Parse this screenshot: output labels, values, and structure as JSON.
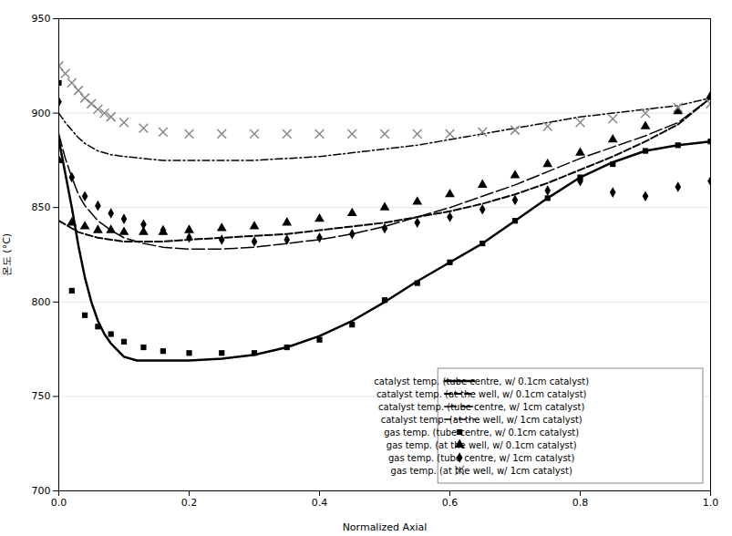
{
  "chart_data": {
    "type": "line",
    "xlabel": "Normalized Axial",
    "ylabel": "온도 (°C)",
    "xlim": [
      0,
      1.0
    ],
    "ylim": [
      700,
      950
    ],
    "xticks": [
      {
        "value": 0.0,
        "label": "0.0"
      },
      0.2,
      0.4,
      0.6,
      0.8,
      {
        "value": 1.0,
        "label": "1.0"
      }
    ],
    "yticks": [
      700,
      750,
      800,
      850,
      900,
      950
    ],
    "grid": "y",
    "legend": "lower right",
    "series": [
      {
        "name": "catalyst temp. (tube centre, w/ 0.1cm catalyst)",
        "type": "line",
        "line_style": "solid",
        "color": "#000000",
        "x": [
          0.0,
          0.01,
          0.02,
          0.03,
          0.04,
          0.05,
          0.06,
          0.07,
          0.08,
          0.1,
          0.12,
          0.14,
          0.16,
          0.18,
          0.2,
          0.25,
          0.3,
          0.35,
          0.4,
          0.45,
          0.5,
          0.55,
          0.6,
          0.65,
          0.7,
          0.75,
          0.8,
          0.85,
          0.9,
          0.95,
          1.0
        ],
        "values": [
          886,
          868,
          850,
          830,
          813,
          800,
          790,
          783,
          778,
          771,
          769,
          769,
          769,
          769,
          769,
          770,
          772,
          776,
          782,
          790,
          800,
          811,
          821,
          831,
          843,
          855,
          866,
          874,
          880,
          883,
          885
        ]
      },
      {
        "name": "catalyst temp. (at the well, w/ 0.1cm catalyst)",
        "type": "line",
        "line_style": "dashed",
        "color": "#000000",
        "x": [
          0.0,
          0.01,
          0.02,
          0.03,
          0.04,
          0.06,
          0.08,
          0.1,
          0.13,
          0.16,
          0.2,
          0.25,
          0.3,
          0.35,
          0.4,
          0.45,
          0.5,
          0.55,
          0.6,
          0.65,
          0.7,
          0.75,
          0.8,
          0.85,
          0.9,
          0.95,
          1.0
        ],
        "values": [
          843,
          841,
          839,
          837,
          836,
          834,
          833,
          832,
          832,
          832,
          833,
          834,
          835,
          836,
          838,
          840,
          842,
          845,
          848,
          852,
          857,
          863,
          870,
          877,
          885,
          894,
          908
        ]
      },
      {
        "name": "catalyst temp. (tube centre, w/ 1cm catalyst)",
        "type": "line",
        "line_style": "longdash",
        "color": "#000000",
        "x": [
          0.0,
          0.01,
          0.02,
          0.03,
          0.04,
          0.06,
          0.08,
          0.1,
          0.13,
          0.16,
          0.2,
          0.25,
          0.3,
          0.35,
          0.4,
          0.45,
          0.5,
          0.55,
          0.6,
          0.65,
          0.7,
          0.75,
          0.8,
          0.85,
          0.9,
          0.95,
          1.0
        ],
        "values": [
          889,
          876,
          866,
          857,
          851,
          843,
          838,
          834,
          831,
          829,
          828,
          828,
          829,
          831,
          833,
          836,
          840,
          845,
          850,
          856,
          862,
          869,
          876,
          882,
          888,
          895,
          908
        ]
      },
      {
        "name": "catalyst temp. (at the well, w/ 1cm catalyst)",
        "type": "line",
        "line_style": "dashdot",
        "color": "#000000",
        "x": [
          0.0,
          0.01,
          0.02,
          0.03,
          0.04,
          0.06,
          0.08,
          0.1,
          0.13,
          0.16,
          0.2,
          0.25,
          0.3,
          0.35,
          0.4,
          0.45,
          0.5,
          0.55,
          0.6,
          0.65,
          0.7,
          0.75,
          0.8,
          0.85,
          0.9,
          0.95,
          1.0
        ],
        "values": [
          900,
          895,
          891,
          887,
          884,
          880,
          878,
          877,
          876,
          875,
          875,
          875,
          875,
          876,
          877,
          879,
          881,
          883,
          886,
          889,
          892,
          895,
          898,
          900,
          902,
          904,
          908
        ]
      },
      {
        "name": "gas temp. (tube centre, w/ 0.1cm catalyst)",
        "type": "scatter",
        "marker": "square",
        "color": "#000000",
        "x": [
          0.0,
          0.02,
          0.04,
          0.06,
          0.08,
          0.1,
          0.13,
          0.16,
          0.2,
          0.25,
          0.3,
          0.35,
          0.4,
          0.45,
          0.5,
          0.55,
          0.6,
          0.65,
          0.7,
          0.75,
          0.8,
          0.85,
          0.9,
          0.95,
          1.0
        ],
        "values": [
          916,
          806,
          793,
          787,
          783,
          779,
          776,
          774,
          773,
          773,
          773,
          776,
          780,
          788,
          801,
          810,
          821,
          831,
          843,
          855,
          866,
          873,
          880,
          883,
          885
        ]
      },
      {
        "name": "gas temp. (at the well, w/ 0.1cm catalyst)",
        "type": "scatter",
        "marker": "triangle",
        "color": "#000000",
        "x": [
          0.0,
          0.02,
          0.04,
          0.06,
          0.08,
          0.1,
          0.13,
          0.16,
          0.2,
          0.25,
          0.3,
          0.35,
          0.4,
          0.45,
          0.5,
          0.55,
          0.6,
          0.65,
          0.7,
          0.75,
          0.8,
          0.85,
          0.9,
          0.95,
          1.0
        ],
        "values": [
          875,
          842,
          840,
          838,
          838,
          837,
          837,
          837,
          838,
          839,
          840,
          842,
          844,
          847,
          850,
          853,
          857,
          862,
          867,
          873,
          879,
          886,
          893,
          901,
          909
        ]
      },
      {
        "name": "gas temp. (tube centre, w/ 1cm catalyst)",
        "type": "scatter",
        "marker": "diamond",
        "color": "#000000",
        "x": [
          0.0,
          0.02,
          0.04,
          0.06,
          0.08,
          0.1,
          0.13,
          0.16,
          0.2,
          0.25,
          0.3,
          0.35,
          0.4,
          0.45,
          0.5,
          0.55,
          0.6,
          0.65,
          0.7,
          0.75,
          0.8,
          0.85,
          0.9,
          0.95,
          1.0
        ],
        "values": [
          906,
          866,
          856,
          851,
          847,
          844,
          841,
          838,
          834,
          833,
          832,
          833,
          834,
          836,
          839,
          842,
          845,
          849,
          854,
          859,
          864,
          858,
          856,
          861,
          864
        ]
      },
      {
        "name": "gas temp. (at the well, w/ 1cm catalyst)",
        "type": "scatter",
        "marker": "x",
        "color": "#888888",
        "x": [
          0.0,
          0.01,
          0.02,
          0.03,
          0.04,
          0.05,
          0.06,
          0.07,
          0.08,
          0.1,
          0.13,
          0.16,
          0.2,
          0.25,
          0.3,
          0.35,
          0.4,
          0.45,
          0.5,
          0.55,
          0.6,
          0.65,
          0.7,
          0.75,
          0.8,
          0.85,
          0.9,
          0.95,
          1.0
        ],
        "values": [
          925,
          921,
          916,
          912,
          908,
          905,
          902,
          900,
          898,
          895,
          892,
          890,
          889,
          889,
          889,
          889,
          889,
          889,
          889,
          889,
          889,
          890,
          891,
          893,
          895,
          897,
          900,
          903,
          905
        ]
      }
    ]
  }
}
